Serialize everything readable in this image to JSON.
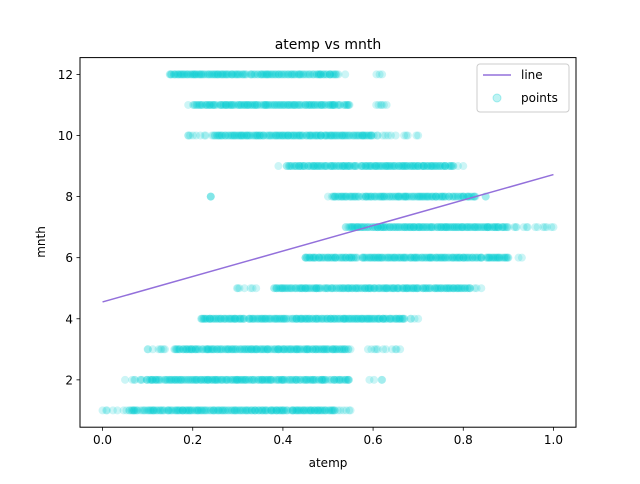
{
  "chart_data": {
    "type": "scatter",
    "title": "atemp vs mnth",
    "xlabel": "atemp",
    "ylabel": "mnth",
    "xlim": [
      -0.05,
      1.05
    ],
    "ylim": [
      0.45,
      12.55
    ],
    "xticks": [
      0.0,
      0.2,
      0.4,
      0.6,
      0.8,
      1.0
    ],
    "xtick_labels": [
      "0.0",
      "0.2",
      "0.4",
      "0.6",
      "0.8",
      "1.0"
    ],
    "yticks": [
      2,
      4,
      6,
      8,
      10,
      12
    ],
    "ytick_labels": [
      "2",
      "4",
      "6",
      "8",
      "10",
      "12"
    ],
    "grid": false,
    "legend": {
      "placement": "top-right",
      "entries": [
        "line",
        "points"
      ]
    },
    "series": [
      {
        "name": "line",
        "kind": "line",
        "color": "#9370db",
        "x": [
          0.0,
          1.0
        ],
        "y": [
          4.55,
          8.72
        ]
      },
      {
        "name": "points",
        "kind": "scatter",
        "color": "#00ced1",
        "alpha": 0.2,
        "clusters": [
          {
            "month": 1,
            "x_min": 0.0,
            "x_max": 0.55,
            "density": [
              [
                0.06,
                0.52,
                0.9
              ],
              [
                0.0,
                0.06,
                0.35
              ],
              [
                0.52,
                0.55,
                0.3
              ]
            ]
          },
          {
            "month": 2,
            "x_min": 0.05,
            "x_max": 0.62,
            "density": [
              [
                0.1,
                0.55,
                0.9
              ],
              [
                0.05,
                0.1,
                0.35
              ],
              [
                0.58,
                0.62,
                0.5
              ]
            ]
          },
          {
            "month": 3,
            "x_min": 0.1,
            "x_max": 0.66,
            "density": [
              [
                0.16,
                0.55,
                0.9
              ],
              [
                0.1,
                0.16,
                0.35
              ],
              [
                0.59,
                0.66,
                0.6
              ]
            ]
          },
          {
            "month": 4,
            "x_min": 0.22,
            "x_max": 0.7,
            "density": [
              [
                0.22,
                0.67,
                0.9
              ],
              [
                0.67,
                0.7,
                0.35
              ]
            ]
          },
          {
            "month": 5,
            "x_min": 0.3,
            "x_max": 0.84,
            "density": [
              [
                0.38,
                0.82,
                0.9
              ],
              [
                0.3,
                0.38,
                0.4
              ],
              [
                0.82,
                0.84,
                0.35
              ]
            ]
          },
          {
            "month": 6,
            "x_min": 0.45,
            "x_max": 0.93,
            "density": [
              [
                0.45,
                0.9,
                0.9
              ],
              [
                0.9,
                0.93,
                0.4
              ]
            ]
          },
          {
            "month": 7,
            "x_min": 0.54,
            "x_max": 1.0,
            "density": [
              [
                0.54,
                0.9,
                0.9
              ],
              [
                0.9,
                1.0,
                0.35
              ]
            ]
          },
          {
            "month": 8,
            "x_min": 0.5,
            "x_max": 0.85,
            "density": [
              [
                0.51,
                0.83,
                0.9
              ],
              [
                0.5,
                0.51,
                0.3
              ],
              [
                0.83,
                0.85,
                0.4
              ]
            ]
          },
          {
            "month": 9,
            "x_min": 0.39,
            "x_max": 0.8,
            "density": [
              [
                0.41,
                0.78,
                0.9
              ],
              [
                0.39,
                0.41,
                0.4
              ],
              [
                0.78,
                0.8,
                0.35
              ]
            ]
          },
          {
            "month": 10,
            "x_min": 0.19,
            "x_max": 0.7,
            "density": [
              [
                0.25,
                0.6,
                0.9
              ],
              [
                0.19,
                0.25,
                0.45
              ],
              [
                0.6,
                0.7,
                0.4
              ]
            ]
          },
          {
            "month": 11,
            "x_min": 0.19,
            "x_max": 0.63,
            "density": [
              [
                0.2,
                0.55,
                0.9
              ],
              [
                0.19,
                0.2,
                0.3
              ],
              [
                0.6,
                0.63,
                0.4
              ]
            ]
          },
          {
            "month": 12,
            "x_min": 0.15,
            "x_max": 0.62,
            "density": [
              [
                0.15,
                0.52,
                0.9
              ],
              [
                0.52,
                0.55,
                0.4
              ],
              [
                0.6,
                0.62,
                0.5
              ]
            ]
          }
        ],
        "outliers": [
          {
            "x": 0.24,
            "y": 8
          }
        ]
      }
    ]
  }
}
